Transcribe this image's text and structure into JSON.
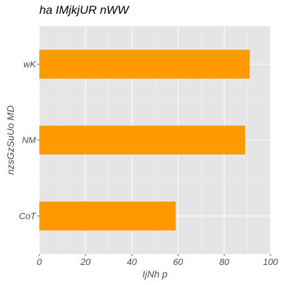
{
  "chart_data": {
    "type": "bar",
    "orientation": "horizontal",
    "title": "ha IMjkjUR nWW",
    "xlabel": "IjNh p",
    "ylabel": "nzsGzSuUo MD",
    "categories": [
      "wK",
      "NM",
      "CoT"
    ],
    "values": [
      91,
      89,
      59
    ],
    "xlim": [
      0,
      100
    ],
    "xticks": [
      0,
      20,
      40,
      60,
      80,
      100
    ],
    "grid": true,
    "colors": {
      "bar": "#ff9900",
      "panel": "#e5e5e5",
      "grid_major": "#ffffff",
      "grid_minor": "#f2f2f2"
    }
  }
}
